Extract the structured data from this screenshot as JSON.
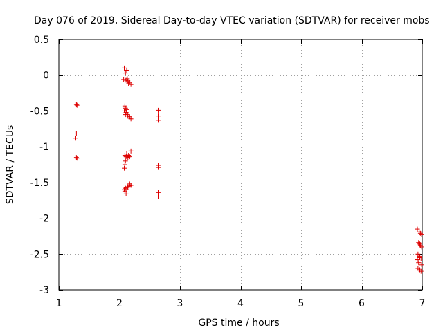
{
  "chart_data": {
    "type": "scatter",
    "title": "Day 076 of 2019, Sidereal Day-to-day VTEC variation (SDTVAR) for receiver mobs",
    "xlabel": "GPS time / hours",
    "ylabel": "SDTVAR / TECUs",
    "xlim": [
      1,
      7
    ],
    "ylim": [
      -3,
      0.5
    ],
    "xticks": [
      1,
      2,
      3,
      4,
      5,
      6,
      7
    ],
    "xtick_labels": [
      "1",
      "2",
      "3",
      "4",
      "5",
      "6",
      "7"
    ],
    "yticks": [
      0.5,
      0,
      -0.5,
      -1,
      -1.5,
      -2,
      -2.5,
      -3
    ],
    "ytick_labels": [
      "0.5",
      "0",
      "-0.5",
      "-1",
      "-1.5",
      "-2",
      "-2.5",
      "-3"
    ],
    "grid": true,
    "marker": "+",
    "marker_color": "#dd0000",
    "series": [
      {
        "name": "SDTVAR",
        "points": [
          [
            1.29,
            -0.41
          ],
          [
            1.3,
            -0.42
          ],
          [
            1.29,
            -0.81
          ],
          [
            1.28,
            -0.88
          ],
          [
            1.29,
            -1.15
          ],
          [
            1.3,
            -1.16
          ],
          [
            2.08,
            0.1
          ],
          [
            2.09,
            0.06
          ],
          [
            2.1,
            0.03
          ],
          [
            2.12,
            0.07
          ],
          [
            2.07,
            -0.06
          ],
          [
            2.11,
            -0.07
          ],
          [
            2.13,
            -0.05
          ],
          [
            2.14,
            -0.08
          ],
          [
            2.15,
            -0.12
          ],
          [
            2.17,
            -0.1
          ],
          [
            2.19,
            -0.13
          ],
          [
            2.09,
            -0.43
          ],
          [
            2.1,
            -0.46
          ],
          [
            2.08,
            -0.5
          ],
          [
            2.11,
            -0.52
          ],
          [
            2.12,
            -0.48
          ],
          [
            2.13,
            -0.55
          ],
          [
            2.14,
            -0.57
          ],
          [
            2.16,
            -0.6
          ],
          [
            2.17,
            -0.58
          ],
          [
            2.19,
            -0.61
          ],
          [
            2.1,
            -0.55
          ],
          [
            2.09,
            -1.12
          ],
          [
            2.11,
            -1.14
          ],
          [
            2.12,
            -1.1
          ],
          [
            2.13,
            -1.13
          ],
          [
            2.14,
            -1.15
          ],
          [
            2.15,
            -1.12
          ],
          [
            2.17,
            -1.14
          ],
          [
            2.19,
            -1.06
          ],
          [
            2.1,
            -1.2
          ],
          [
            2.09,
            -1.25
          ],
          [
            2.08,
            -1.3
          ],
          [
            2.08,
            -1.6
          ],
          [
            2.09,
            -1.62
          ],
          [
            2.1,
            -1.58
          ],
          [
            2.11,
            -1.66
          ],
          [
            2.12,
            -1.6
          ],
          [
            2.13,
            -1.57
          ],
          [
            2.14,
            -1.56
          ],
          [
            2.16,
            -1.55
          ],
          [
            2.17,
            -1.52
          ],
          [
            2.19,
            -1.54
          ],
          [
            2.64,
            -0.49
          ],
          [
            2.64,
            -0.57
          ],
          [
            2.64,
            -0.63
          ],
          [
            2.64,
            -1.26
          ],
          [
            2.64,
            -1.29
          ],
          [
            2.64,
            -1.64
          ],
          [
            2.64,
            -1.69
          ],
          [
            6.92,
            -2.15
          ],
          [
            6.95,
            -2.19
          ],
          [
            6.97,
            -2.21
          ],
          [
            6.99,
            -2.23
          ],
          [
            6.94,
            -2.34
          ],
          [
            6.96,
            -2.36
          ],
          [
            6.97,
            -2.38
          ],
          [
            6.99,
            -2.4
          ],
          [
            6.93,
            -2.5
          ],
          [
            6.95,
            -2.53
          ],
          [
            6.96,
            -2.55
          ],
          [
            6.98,
            -2.57
          ],
          [
            6.92,
            -2.58
          ],
          [
            6.94,
            -2.62
          ],
          [
            6.99,
            -2.65
          ],
          [
            6.93,
            -2.7
          ],
          [
            6.96,
            -2.72
          ],
          [
            6.98,
            -2.74
          ]
        ]
      }
    ]
  }
}
